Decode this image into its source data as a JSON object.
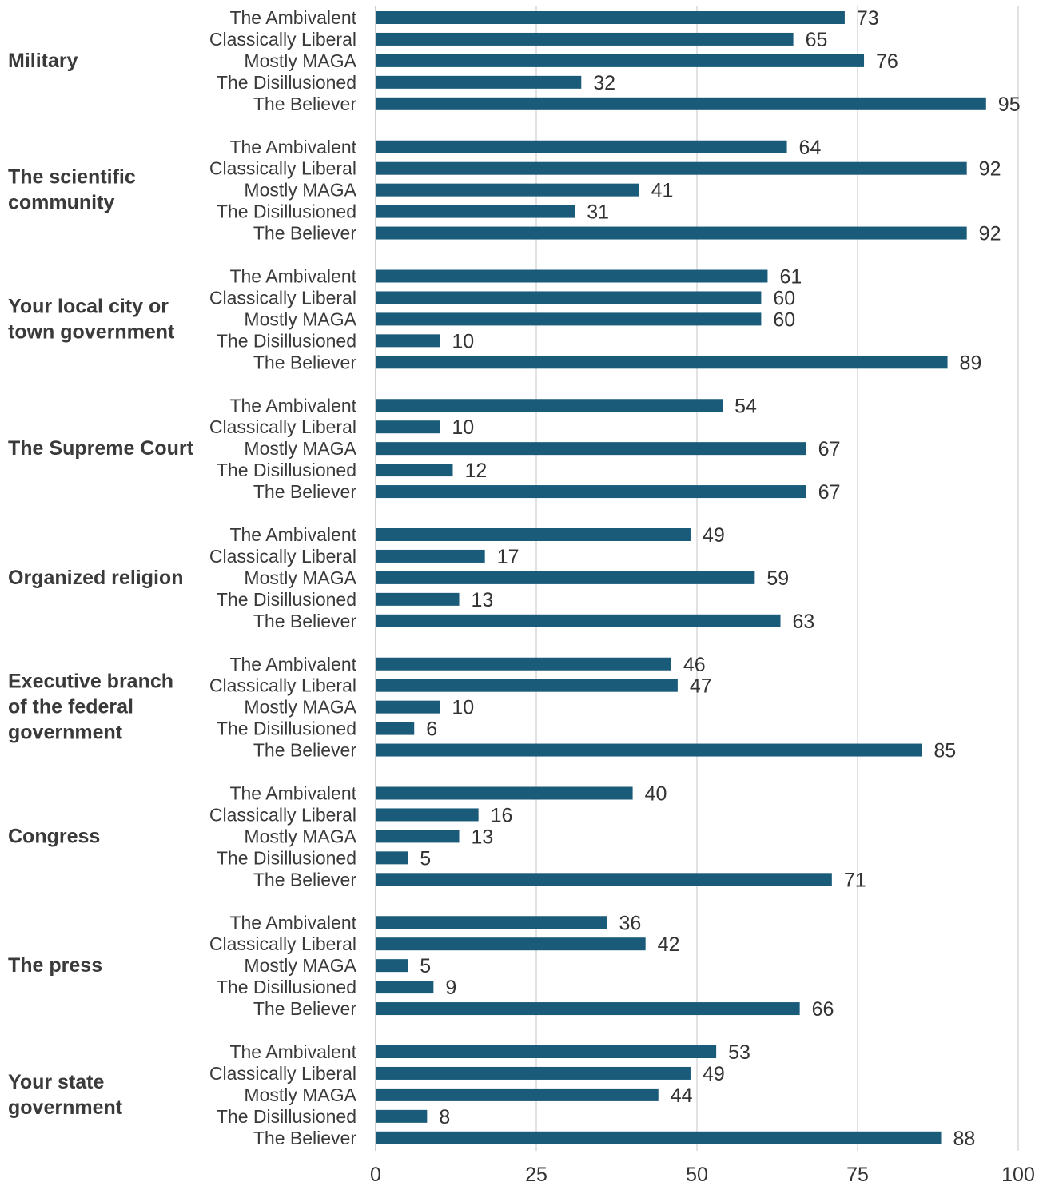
{
  "chart_data": {
    "type": "bar",
    "orientation": "horizontal",
    "title": "",
    "xlabel": "",
    "ylabel": "",
    "xlim": [
      0,
      100
    ],
    "x_ticks": [
      "0",
      "25",
      "50",
      "75",
      "100"
    ],
    "grid": true,
    "legend": "none",
    "bar_color": "#1b5b7a",
    "grid_color": "#d9d9d9",
    "groups": [
      {
        "name": "Military",
        "bars": [
          {
            "label": "The Ambivalent",
            "value": 73
          },
          {
            "label": "Classically Liberal",
            "value": 65
          },
          {
            "label": "Mostly MAGA",
            "value": 76
          },
          {
            "label": "The Disillusioned",
            "value": 32
          },
          {
            "label": "The Believer",
            "value": 95
          }
        ]
      },
      {
        "name": "The scientific community",
        "bars": [
          {
            "label": "The Ambivalent",
            "value": 64
          },
          {
            "label": "Classically Liberal",
            "value": 92
          },
          {
            "label": "Mostly MAGA",
            "value": 41
          },
          {
            "label": "The Disillusioned",
            "value": 31
          },
          {
            "label": "The Believer",
            "value": 92
          }
        ]
      },
      {
        "name": "Your local city or town government",
        "bars": [
          {
            "label": "The Ambivalent",
            "value": 61
          },
          {
            "label": "Classically Liberal",
            "value": 60
          },
          {
            "label": "Mostly MAGA",
            "value": 60
          },
          {
            "label": "The Disillusioned",
            "value": 10
          },
          {
            "label": "The Believer",
            "value": 89
          }
        ]
      },
      {
        "name": "The Supreme Court",
        "bars": [
          {
            "label": "The Ambivalent",
            "value": 54
          },
          {
            "label": "Classically Liberal",
            "value": 10
          },
          {
            "label": "Mostly MAGA",
            "value": 67
          },
          {
            "label": "The Disillusioned",
            "value": 12
          },
          {
            "label": "The Believer",
            "value": 67
          }
        ]
      },
      {
        "name": "Organized religion",
        "bars": [
          {
            "label": "The Ambivalent",
            "value": 49
          },
          {
            "label": "Classically Liberal",
            "value": 17
          },
          {
            "label": "Mostly MAGA",
            "value": 59
          },
          {
            "label": "The Disillusioned",
            "value": 13
          },
          {
            "label": "The Believer",
            "value": 63
          }
        ]
      },
      {
        "name": "Executive branch of the federal government",
        "bars": [
          {
            "label": "The Ambivalent",
            "value": 46
          },
          {
            "label": "Classically Liberal",
            "value": 47
          },
          {
            "label": "Mostly MAGA",
            "value": 10
          },
          {
            "label": "The Disillusioned",
            "value": 6
          },
          {
            "label": "The Believer",
            "value": 85
          }
        ]
      },
      {
        "name": "Congress",
        "bars": [
          {
            "label": "The Ambivalent",
            "value": 40
          },
          {
            "label": "Classically Liberal",
            "value": 16
          },
          {
            "label": "Mostly MAGA",
            "value": 13
          },
          {
            "label": "The Disillusioned",
            "value": 5
          },
          {
            "label": "The Believer",
            "value": 71
          }
        ]
      },
      {
        "name": "The press",
        "bars": [
          {
            "label": "The Ambivalent",
            "value": 36
          },
          {
            "label": "Classically Liberal",
            "value": 42
          },
          {
            "label": "Mostly MAGA",
            "value": 5
          },
          {
            "label": "The Disillusioned",
            "value": 9
          },
          {
            "label": "The Believer",
            "value": 66
          }
        ]
      },
      {
        "name": "Your state government",
        "bars": [
          {
            "label": "The Ambivalent",
            "value": 53
          },
          {
            "label": "Classically Liberal",
            "value": 49
          },
          {
            "label": "Mostly MAGA",
            "value": 44
          },
          {
            "label": "The Disillusioned",
            "value": 8
          },
          {
            "label": "The Believer",
            "value": 88
          }
        ]
      }
    ]
  }
}
